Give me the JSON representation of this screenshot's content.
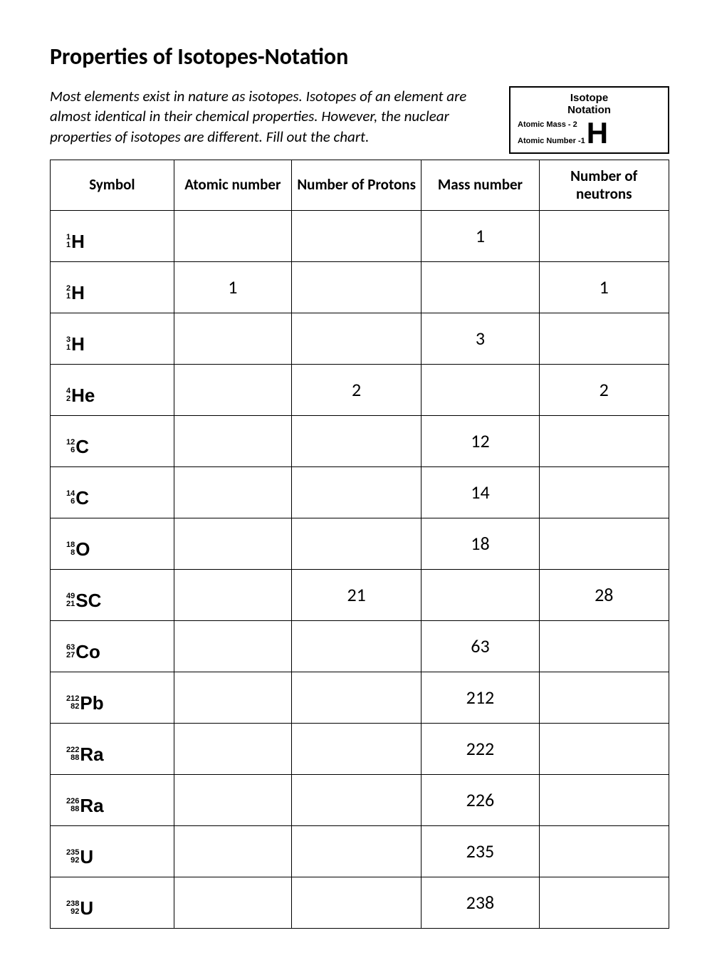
{
  "title": "Properties of Isotopes-Notation",
  "intro": "Most elements exist in nature as isotopes. Isotopes of an element are almost identical in their chemical properties. However, the nuclear properties of isotopes are different. Fill out the chart.",
  "notation_box": {
    "title_line1": "Isotope",
    "title_line2": "Notation",
    "mass_label": "Atomic Mass -",
    "mass_value": "2",
    "number_label": "Atomic Number -",
    "number_value": "1",
    "element": "H"
  },
  "table": {
    "columns": [
      "Symbol",
      "Atomic number",
      "Number of Protons",
      "Mass number",
      "Number of neutrons"
    ],
    "rows": [
      {
        "mass": "1",
        "z": "1",
        "el": "H",
        "atomic_number": "",
        "protons": "",
        "mass_number": "1",
        "neutrons": ""
      },
      {
        "mass": "2",
        "z": "1",
        "el": "H",
        "atomic_number": "1",
        "protons": "",
        "mass_number": "",
        "neutrons": "1"
      },
      {
        "mass": "3",
        "z": "1",
        "el": "H",
        "atomic_number": "",
        "protons": "",
        "mass_number": "3",
        "neutrons": ""
      },
      {
        "mass": "4",
        "z": "2",
        "el": "He",
        "atomic_number": "",
        "protons": "2",
        "mass_number": "",
        "neutrons": "2"
      },
      {
        "mass": "12",
        "z": "6",
        "el": "C",
        "atomic_number": "",
        "protons": "",
        "mass_number": "12",
        "neutrons": ""
      },
      {
        "mass": "14",
        "z": "6",
        "el": "C",
        "atomic_number": "",
        "protons": "",
        "mass_number": "14",
        "neutrons": ""
      },
      {
        "mass": "18",
        "z": "8",
        "el": "O",
        "atomic_number": "",
        "protons": "",
        "mass_number": "18",
        "neutrons": ""
      },
      {
        "mass": "49",
        "z": "21",
        "el": "SC",
        "atomic_number": "",
        "protons": "21",
        "mass_number": "",
        "neutrons": "28"
      },
      {
        "mass": "63",
        "z": "27",
        "el": "Co",
        "atomic_number": "",
        "protons": "",
        "mass_number": "63",
        "neutrons": ""
      },
      {
        "mass": "212",
        "z": "82",
        "el": "Pb",
        "atomic_number": "",
        "protons": "",
        "mass_number": "212",
        "neutrons": ""
      },
      {
        "mass": "222",
        "z": "88",
        "el": "Ra",
        "atomic_number": "",
        "protons": "",
        "mass_number": "222",
        "neutrons": ""
      },
      {
        "mass": "226",
        "z": "88",
        "el": "Ra",
        "atomic_number": "",
        "protons": "",
        "mass_number": "226",
        "neutrons": ""
      },
      {
        "mass": "235",
        "z": "92",
        "el": "U",
        "atomic_number": "",
        "protons": "",
        "mass_number": "235",
        "neutrons": ""
      },
      {
        "mass": "238",
        "z": "92",
        "el": "U",
        "atomic_number": "",
        "protons": "",
        "mass_number": "238",
        "neutrons": ""
      }
    ]
  }
}
